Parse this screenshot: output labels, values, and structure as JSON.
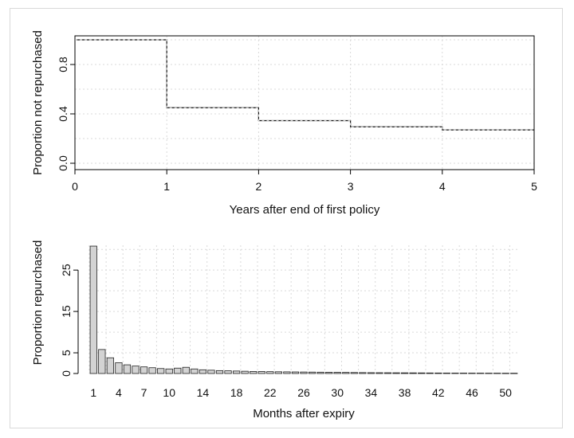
{
  "chart_data": [
    {
      "type": "line",
      "step": true,
      "xlabel": "Years after end of first policy",
      "ylabel": "Proportion not repurchased",
      "xlim": [
        0,
        5
      ],
      "ylim": [
        0,
        1
      ],
      "x_ticks": [
        "0",
        "1",
        "2",
        "3",
        "4",
        "5"
      ],
      "y_ticks": [
        "0.0",
        "0.4",
        "0.8"
      ],
      "grid": true,
      "x": [
        0,
        1,
        2,
        3,
        4,
        5
      ],
      "y": [
        1.0,
        0.45,
        0.345,
        0.295,
        0.27,
        0.27
      ]
    },
    {
      "type": "bar",
      "xlabel": "Months after expiry",
      "ylabel": "Proportion repurchased",
      "ylim": [
        0,
        31
      ],
      "x_ticks": [
        "1",
        "4",
        "7",
        "10",
        "14",
        "18",
        "22",
        "26",
        "30",
        "34",
        "38",
        "42",
        "46",
        "50"
      ],
      "y_ticks": [
        "0",
        "5",
        "15",
        "25"
      ],
      "grid": true,
      "categories": [
        1,
        2,
        3,
        4,
        5,
        6,
        7,
        8,
        9,
        10,
        11,
        12,
        13,
        14,
        15,
        16,
        17,
        18,
        19,
        20,
        21,
        22,
        23,
        24,
        25,
        26,
        27,
        28,
        29,
        30,
        31,
        32,
        33,
        34,
        35,
        36,
        37,
        38,
        39,
        40,
        41,
        42,
        43,
        44,
        45,
        46,
        47,
        48,
        49,
        50,
        51
      ],
      "values": [
        30.8,
        5.8,
        3.8,
        2.6,
        2.1,
        1.8,
        1.6,
        1.4,
        1.2,
        1.1,
        1.3,
        1.5,
        1.1,
        0.9,
        0.8,
        0.7,
        0.65,
        0.6,
        0.55,
        0.5,
        0.48,
        0.45,
        0.42,
        0.4,
        0.38,
        0.36,
        0.34,
        0.32,
        0.3,
        0.28,
        0.26,
        0.24,
        0.22,
        0.2,
        0.19,
        0.18,
        0.17,
        0.16,
        0.15,
        0.14,
        0.13,
        0.12,
        0.11,
        0.1,
        0.1,
        0.09,
        0.09,
        0.08,
        0.08,
        0.07,
        0.07
      ]
    }
  ]
}
